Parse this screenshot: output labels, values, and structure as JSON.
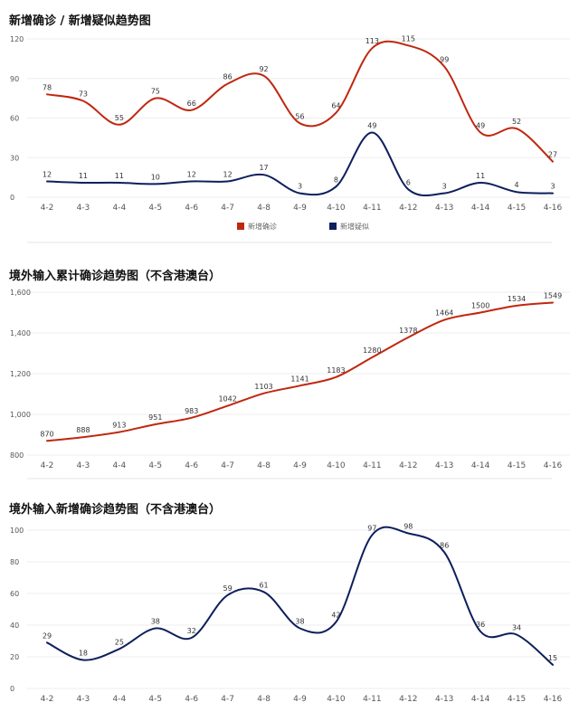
{
  "chart_data": [
    {
      "type": "line",
      "title": "新增确诊 / 新增疑似趋势图",
      "categories": [
        "4-2",
        "4-3",
        "4-4",
        "4-5",
        "4-6",
        "4-7",
        "4-8",
        "4-9",
        "4-10",
        "4-11",
        "4-12",
        "4-13",
        "4-14",
        "4-15",
        "4-16"
      ],
      "ylim": [
        0,
        120
      ],
      "yticks": [
        "0",
        "30",
        "60",
        "90",
        "120"
      ],
      "grid": true,
      "legend_position": "bottom-center",
      "series": [
        {
          "name": "新增确诊",
          "color": "#c0270f",
          "values": [
            78,
            73,
            55,
            75,
            66,
            86,
            92,
            56,
            64,
            113,
            115,
            99,
            49,
            52,
            27
          ]
        },
        {
          "name": "新增疑似",
          "color": "#0d1f5c",
          "values": [
            12,
            11,
            11,
            10,
            12,
            12,
            17,
            3,
            8,
            49,
            6,
            3,
            11,
            4,
            3
          ]
        }
      ]
    },
    {
      "type": "line",
      "title": "境外输入累计确诊趋势图（不含港澳台）",
      "categories": [
        "4-2",
        "4-3",
        "4-4",
        "4-5",
        "4-6",
        "4-7",
        "4-8",
        "4-9",
        "4-10",
        "4-11",
        "4-12",
        "4-13",
        "4-14",
        "4-15",
        "4-16"
      ],
      "ylim": [
        800,
        1600
      ],
      "yticks": [
        "800",
        "1,000",
        "1,200",
        "1,400",
        "1,600"
      ],
      "grid": true,
      "series": [
        {
          "color": "#c0270f",
          "values": [
            870,
            888,
            913,
            951,
            983,
            1042,
            1103,
            1141,
            1183,
            1280,
            1378,
            1464,
            1500,
            1534,
            1549
          ]
        }
      ]
    },
    {
      "type": "line",
      "title": "境外输入新增确诊趋势图（不含港澳台）",
      "categories": [
        "4-2",
        "4-3",
        "4-4",
        "4-5",
        "4-6",
        "4-7",
        "4-8",
        "4-9",
        "4-10",
        "4-11",
        "4-12",
        "4-13",
        "4-14",
        "4-15",
        "4-16"
      ],
      "ylim": [
        0,
        100
      ],
      "yticks": [
        "0",
        "20",
        "40",
        "60",
        "80",
        "100"
      ],
      "grid": true,
      "series": [
        {
          "color": "#0d1f5c",
          "values": [
            29,
            18,
            25,
            38,
            32,
            59,
            61,
            38,
            42,
            97,
            98,
            86,
            36,
            34,
            15
          ]
        }
      ]
    }
  ]
}
